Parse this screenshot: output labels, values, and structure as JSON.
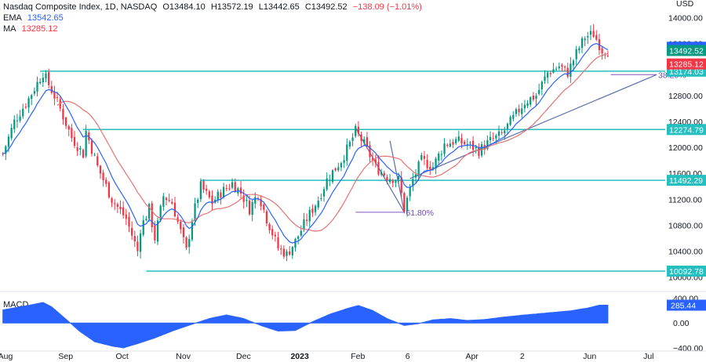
{
  "header": {
    "symbol": "Nasdaq Composite Index, 1D, NASDAQ",
    "open_label": "O",
    "open": "13484.10",
    "high_label": "H",
    "high": "13572.19",
    "low_label": "L",
    "low": "13442.65",
    "close_label": "C",
    "close": "13492.52",
    "change": "−138.09 (−1.01%)",
    "ema_label": "EMA",
    "ema_value": "13542.65",
    "ma_label": "MA",
    "ma_value": "13285.12"
  },
  "macd": {
    "label": "MACD",
    "value": "285.44"
  },
  "colors": {
    "up": "#089981",
    "down": "#f23645",
    "ema": "#2962ff",
    "ma": "#e57373",
    "level": "#26bfbf",
    "trend": "#5b6fa8",
    "macd_fill": "#2962ff"
  },
  "chart_data": {
    "type": "candlestick",
    "currency": "USD",
    "ylim": [
      9900,
      14150
    ],
    "y_ticks": [
      10000,
      10400,
      10800,
      11200,
      11600,
      12000,
      12400,
      12800,
      13200,
      13600,
      14000
    ],
    "y_tick_labels": [
      "10000.00",
      "10400.00",
      "10800.00",
      "11200.00",
      "11600.00",
      "12000.00",
      "12400.00",
      "12800.00",
      "13200.00",
      "13600.00",
      "14000.00"
    ],
    "x_labels": [
      {
        "label": "Aug",
        "day": 0
      },
      {
        "label": "Sep",
        "day": 21
      },
      {
        "label": "Oct",
        "day": 41
      },
      {
        "label": "Nov",
        "day": 62
      },
      {
        "label": "Dec",
        "day": 83
      },
      {
        "label": "2023",
        "day": 102
      },
      {
        "label": "Feb",
        "day": 123
      },
      {
        "label": "6",
        "day": 142
      },
      {
        "label": "Apr",
        "day": 163
      },
      {
        "label": "2",
        "day": 182
      },
      {
        "label": "Jun",
        "day": 204
      },
      {
        "label": "Jul",
        "day": 225
      }
    ],
    "x_range": [
      -1,
      231
    ],
    "horizontal_levels": [
      {
        "value": 13174.03,
        "label": "13174.03",
        "start_day": 13
      },
      {
        "value": 12274.79,
        "label": "12274.79",
        "start_day": 28
      },
      {
        "value": 11492.29,
        "label": "11492.29",
        "start_day": 69
      },
      {
        "value": 10092.78,
        "label": "10092.78",
        "start_day": 50
      }
    ],
    "price_badges": [
      {
        "value": 13542.65,
        "label": "13542.65",
        "color": "#2962ff"
      },
      {
        "value": 13492.52,
        "label": "13492.52",
        "color": "#089981"
      },
      {
        "value": 13285.12,
        "label": "13285.12",
        "color": "#f23645"
      }
    ],
    "fib_lines": [
      {
        "label": "38.20%",
        "value": 13120,
        "d1": 212,
        "d2": 228
      },
      {
        "label": "61.80%",
        "value": 11000,
        "d1": 123,
        "d2": 140
      }
    ],
    "trendlines": [
      {
        "d1": 142,
        "v1": 11520,
        "d2": 228,
        "v2": 13120
      },
      {
        "d1": 123,
        "v1": 12300,
        "d2": 140,
        "v2": 11000
      },
      {
        "d1": 135,
        "v1": 12100,
        "d2": 140,
        "v2": 11000
      }
    ],
    "anchors": [
      [
        0,
        11900
      ],
      [
        4,
        12400
      ],
      [
        9,
        12750
      ],
      [
        14,
        13150
      ],
      [
        19,
        12700
      ],
      [
        24,
        12150
      ],
      [
        28,
        11900
      ],
      [
        29,
        12250
      ],
      [
        33,
        11700
      ],
      [
        38,
        11200
      ],
      [
        43,
        10900
      ],
      [
        47,
        10400
      ],
      [
        48,
        10750
      ],
      [
        51,
        11050
      ],
      [
        53,
        10600
      ],
      [
        56,
        11250
      ],
      [
        59,
        11150
      ],
      [
        62,
        10700
      ],
      [
        64,
        10400
      ],
      [
        66,
        10900
      ],
      [
        69,
        11400
      ],
      [
        73,
        11150
      ],
      [
        76,
        11300
      ],
      [
        80,
        11450
      ],
      [
        83,
        11300
      ],
      [
        86,
        11050
      ],
      [
        89,
        11300
      ],
      [
        92,
        10900
      ],
      [
        96,
        10450
      ],
      [
        99,
        10350
      ],
      [
        102,
        10550
      ],
      [
        106,
        10900
      ],
      [
        110,
        11200
      ],
      [
        113,
        11500
      ],
      [
        118,
        11800
      ],
      [
        121,
        12050
      ],
      [
        123,
        12250
      ],
      [
        126,
        12050
      ],
      [
        130,
        11700
      ],
      [
        134,
        11550
      ],
      [
        138,
        11500
      ],
      [
        140,
        11050
      ],
      [
        143,
        11500
      ],
      [
        146,
        11800
      ],
      [
        150,
        11700
      ],
      [
        154,
        12050
      ],
      [
        158,
        12100
      ],
      [
        162,
        12050
      ],
      [
        166,
        11950
      ],
      [
        170,
        12100
      ],
      [
        174,
        12200
      ],
      [
        178,
        12450
      ],
      [
        182,
        12700
      ],
      [
        186,
        12800
      ],
      [
        190,
        13150
      ],
      [
        194,
        13250
      ],
      [
        197,
        13150
      ],
      [
        200,
        13450
      ],
      [
        203,
        13700
      ],
      [
        206,
        13750
      ],
      [
        209,
        13500
      ],
      [
        211,
        13490
      ]
    ],
    "ema_period": 9,
    "ma_period": 20,
    "macd_ylim": [
      -450,
      430
    ],
    "macd_ticks": [
      400,
      0,
      -400
    ],
    "macd_tick_labels": [
      "400.00",
      "0.00",
      "−400.00"
    ],
    "macd_anchors": [
      [
        0,
        210
      ],
      [
        5,
        250
      ],
      [
        11,
        300
      ],
      [
        14,
        330
      ],
      [
        17,
        260
      ],
      [
        22,
        60
      ],
      [
        27,
        -140
      ],
      [
        32,
        -300
      ],
      [
        38,
        -370
      ],
      [
        42,
        -400
      ],
      [
        47,
        -330
      ],
      [
        53,
        -240
      ],
      [
        59,
        -130
      ],
      [
        66,
        -20
      ],
      [
        72,
        70
      ],
      [
        78,
        130
      ],
      [
        84,
        70
      ],
      [
        90,
        -40
      ],
      [
        96,
        -130
      ],
      [
        102,
        -120
      ],
      [
        108,
        20
      ],
      [
        114,
        140
      ],
      [
        120,
        230
      ],
      [
        124,
        280
      ],
      [
        129,
        200
      ],
      [
        134,
        70
      ],
      [
        140,
        -40
      ],
      [
        145,
        -10
      ],
      [
        150,
        50
      ],
      [
        156,
        70
      ],
      [
        162,
        40
      ],
      [
        168,
        55
      ],
      [
        174,
        90
      ],
      [
        180,
        120
      ],
      [
        186,
        145
      ],
      [
        192,
        170
      ],
      [
        198,
        195
      ],
      [
        204,
        240
      ],
      [
        208,
        285
      ],
      [
        211,
        285
      ]
    ]
  }
}
